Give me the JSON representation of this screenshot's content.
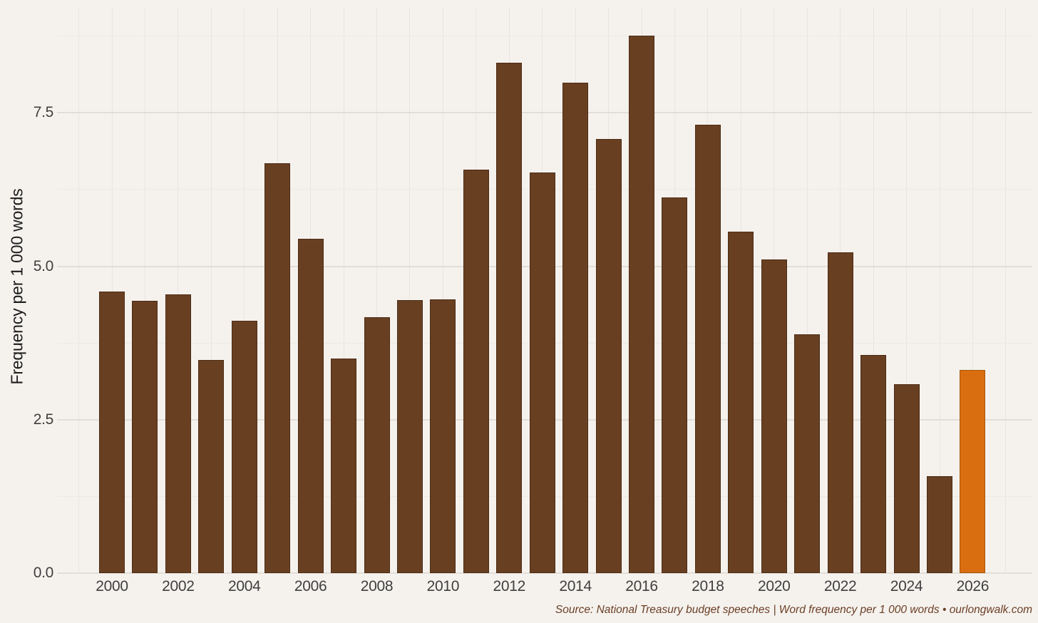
{
  "chart_data": {
    "type": "bar",
    "ylabel": "Frequency per 1 000 words",
    "xlabel": "",
    "categories": [
      "2000",
      "2001",
      "2002",
      "2003",
      "2004",
      "2005",
      "2006",
      "2007",
      "2008",
      "2009",
      "2010",
      "2011",
      "2012",
      "2013",
      "2014",
      "2015",
      "2016",
      "2017",
      "2018",
      "2019",
      "2020",
      "2021",
      "2022",
      "2023",
      "2024",
      "2025",
      "2026"
    ],
    "values": [
      4.59,
      4.44,
      4.54,
      3.47,
      4.11,
      6.68,
      5.45,
      3.5,
      4.17,
      4.45,
      4.46,
      6.57,
      8.32,
      6.53,
      7.99,
      7.07,
      8.76,
      6.12,
      7.31,
      5.56,
      5.11,
      3.89,
      5.23,
      3.55,
      3.08,
      1.58,
      3.31
    ],
    "ylim": [
      0,
      9.2
    ],
    "y_major_ticks": [
      0.0,
      2.5,
      5.0,
      7.5
    ],
    "y_tick_labels": [
      "0.0",
      "2.5",
      "5.0",
      "7.5"
    ],
    "y_minor_ticks": [
      1.25,
      3.75,
      6.25,
      8.75
    ],
    "x_tick_labels": [
      "2000",
      "2002",
      "2004",
      "2006",
      "2008",
      "2010",
      "2012",
      "2014",
      "2016",
      "2018",
      "2020",
      "2022",
      "2024",
      "2026"
    ],
    "grid": true,
    "legend_position": "none",
    "highlight_category": "2026",
    "bar_color": "#693f22",
    "bar_border_color": "#4c2c13",
    "highlight_color": "#d96e11",
    "highlight_border_color": "#a85608",
    "background_color": "#f5f2ee"
  },
  "footer": {
    "source_note": "Source: National Treasury budget speeches | Word frequency per 1 000 words • ourlongwalk.com"
  }
}
